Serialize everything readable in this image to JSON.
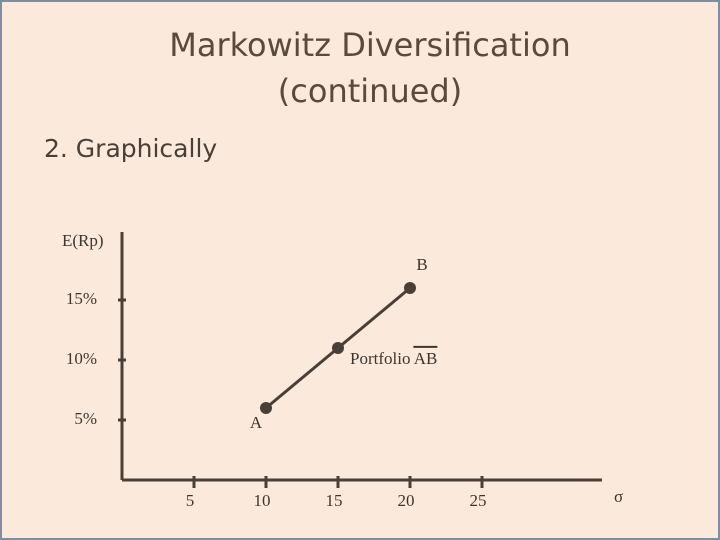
{
  "chart_data": {
    "type": "line",
    "title": "Markowitz Diversification (continued)",
    "subtitle": "2. Graphically",
    "y_label": "E(Rp)",
    "x_label": "σ",
    "x": [
      10,
      15,
      20
    ],
    "series": [
      {
        "color": "#4a3f36",
        "values": [
          6,
          11,
          16
        ]
      }
    ],
    "point_labels": [
      "A",
      "Portfolio AB",
      "B"
    ],
    "xlim": [
      0,
      33
    ],
    "ylim": [
      0,
      21
    ],
    "xticks": [
      5,
      10,
      15,
      20,
      25
    ],
    "yticks": [
      {
        "value": 5,
        "label": "5%"
      },
      {
        "value": 10,
        "label": "10%"
      },
      {
        "value": 15,
        "label": "15%"
      }
    ],
    "grid": false
  }
}
